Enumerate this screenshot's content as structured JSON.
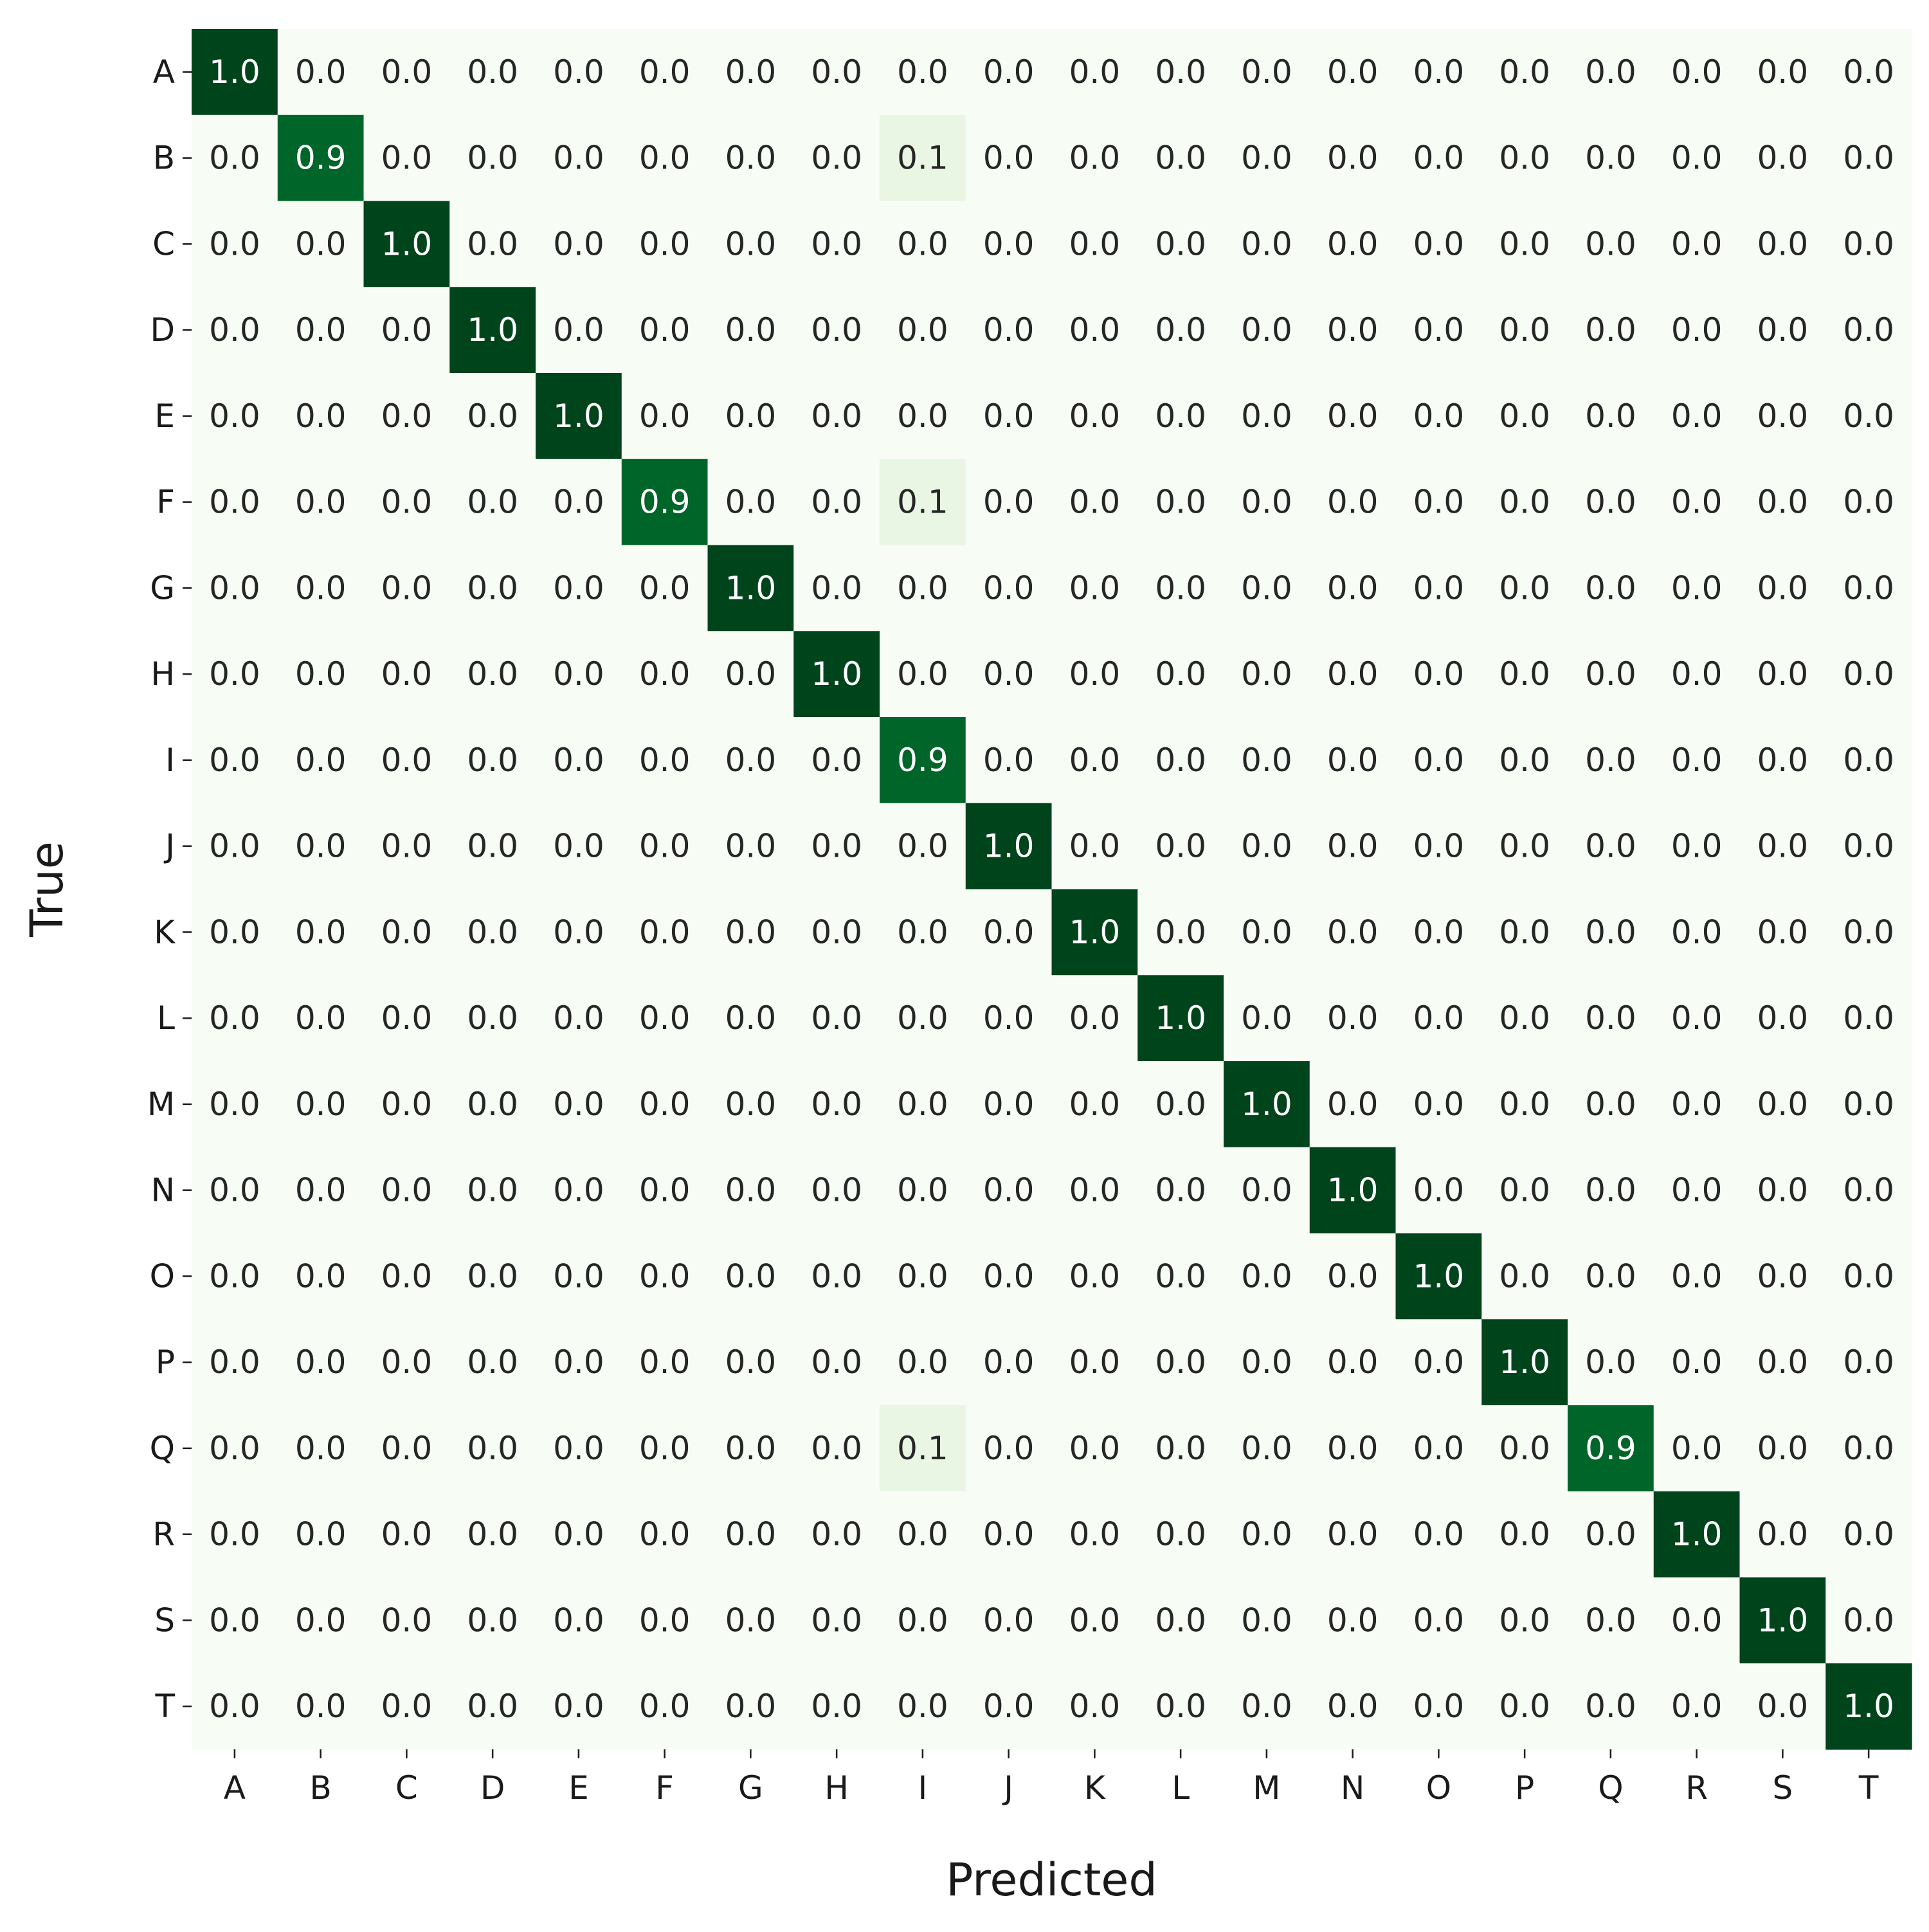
{
  "chart_data": {
    "type": "heatmap",
    "title": "",
    "xlabel": "Predicted",
    "ylabel": "True",
    "x_categories": [
      "A",
      "B",
      "C",
      "D",
      "E",
      "F",
      "G",
      "H",
      "I",
      "J",
      "K",
      "L",
      "M",
      "N",
      "O",
      "P",
      "Q",
      "R",
      "S",
      "T"
    ],
    "y_categories": [
      "A",
      "B",
      "C",
      "D",
      "E",
      "F",
      "G",
      "H",
      "I",
      "J",
      "K",
      "L",
      "M",
      "N",
      "O",
      "P",
      "Q",
      "R",
      "S",
      "T"
    ],
    "value_range": [
      0,
      1
    ],
    "colormap": "Greens",
    "colors": {
      "low": "#f7fcf5",
      "high": "#00441b",
      "text_dark": "#262626",
      "text_light": "#ffffff"
    },
    "values": [
      [
        1.0,
        0.0,
        0.0,
        0.0,
        0.0,
        0.0,
        0.0,
        0.0,
        0.0,
        0.0,
        0.0,
        0.0,
        0.0,
        0.0,
        0.0,
        0.0,
        0.0,
        0.0,
        0.0,
        0.0
      ],
      [
        0.0,
        0.9,
        0.0,
        0.0,
        0.0,
        0.0,
        0.0,
        0.0,
        0.1,
        0.0,
        0.0,
        0.0,
        0.0,
        0.0,
        0.0,
        0.0,
        0.0,
        0.0,
        0.0,
        0.0
      ],
      [
        0.0,
        0.0,
        1.0,
        0.0,
        0.0,
        0.0,
        0.0,
        0.0,
        0.0,
        0.0,
        0.0,
        0.0,
        0.0,
        0.0,
        0.0,
        0.0,
        0.0,
        0.0,
        0.0,
        0.0
      ],
      [
        0.0,
        0.0,
        0.0,
        1.0,
        0.0,
        0.0,
        0.0,
        0.0,
        0.0,
        0.0,
        0.0,
        0.0,
        0.0,
        0.0,
        0.0,
        0.0,
        0.0,
        0.0,
        0.0,
        0.0
      ],
      [
        0.0,
        0.0,
        0.0,
        0.0,
        1.0,
        0.0,
        0.0,
        0.0,
        0.0,
        0.0,
        0.0,
        0.0,
        0.0,
        0.0,
        0.0,
        0.0,
        0.0,
        0.0,
        0.0,
        0.0
      ],
      [
        0.0,
        0.0,
        0.0,
        0.0,
        0.0,
        0.9,
        0.0,
        0.0,
        0.1,
        0.0,
        0.0,
        0.0,
        0.0,
        0.0,
        0.0,
        0.0,
        0.0,
        0.0,
        0.0,
        0.0
      ],
      [
        0.0,
        0.0,
        0.0,
        0.0,
        0.0,
        0.0,
        1.0,
        0.0,
        0.0,
        0.0,
        0.0,
        0.0,
        0.0,
        0.0,
        0.0,
        0.0,
        0.0,
        0.0,
        0.0,
        0.0
      ],
      [
        0.0,
        0.0,
        0.0,
        0.0,
        0.0,
        0.0,
        0.0,
        1.0,
        0.0,
        0.0,
        0.0,
        0.0,
        0.0,
        0.0,
        0.0,
        0.0,
        0.0,
        0.0,
        0.0,
        0.0
      ],
      [
        0.0,
        0.0,
        0.0,
        0.0,
        0.0,
        0.0,
        0.0,
        0.0,
        0.9,
        0.0,
        0.0,
        0.0,
        0.0,
        0.0,
        0.0,
        0.0,
        0.0,
        0.0,
        0.0,
        0.0
      ],
      [
        0.0,
        0.0,
        0.0,
        0.0,
        0.0,
        0.0,
        0.0,
        0.0,
        0.0,
        1.0,
        0.0,
        0.0,
        0.0,
        0.0,
        0.0,
        0.0,
        0.0,
        0.0,
        0.0,
        0.0
      ],
      [
        0.0,
        0.0,
        0.0,
        0.0,
        0.0,
        0.0,
        0.0,
        0.0,
        0.0,
        0.0,
        1.0,
        0.0,
        0.0,
        0.0,
        0.0,
        0.0,
        0.0,
        0.0,
        0.0,
        0.0
      ],
      [
        0.0,
        0.0,
        0.0,
        0.0,
        0.0,
        0.0,
        0.0,
        0.0,
        0.0,
        0.0,
        0.0,
        1.0,
        0.0,
        0.0,
        0.0,
        0.0,
        0.0,
        0.0,
        0.0,
        0.0
      ],
      [
        0.0,
        0.0,
        0.0,
        0.0,
        0.0,
        0.0,
        0.0,
        0.0,
        0.0,
        0.0,
        0.0,
        0.0,
        1.0,
        0.0,
        0.0,
        0.0,
        0.0,
        0.0,
        0.0,
        0.0
      ],
      [
        0.0,
        0.0,
        0.0,
        0.0,
        0.0,
        0.0,
        0.0,
        0.0,
        0.0,
        0.0,
        0.0,
        0.0,
        0.0,
        1.0,
        0.0,
        0.0,
        0.0,
        0.0,
        0.0,
        0.0
      ],
      [
        0.0,
        0.0,
        0.0,
        0.0,
        0.0,
        0.0,
        0.0,
        0.0,
        0.0,
        0.0,
        0.0,
        0.0,
        0.0,
        0.0,
        1.0,
        0.0,
        0.0,
        0.0,
        0.0,
        0.0
      ],
      [
        0.0,
        0.0,
        0.0,
        0.0,
        0.0,
        0.0,
        0.0,
        0.0,
        0.0,
        0.0,
        0.0,
        0.0,
        0.0,
        0.0,
        0.0,
        1.0,
        0.0,
        0.0,
        0.0,
        0.0
      ],
      [
        0.0,
        0.0,
        0.0,
        0.0,
        0.0,
        0.0,
        0.0,
        0.0,
        0.1,
        0.0,
        0.0,
        0.0,
        0.0,
        0.0,
        0.0,
        0.0,
        0.9,
        0.0,
        0.0,
        0.0
      ],
      [
        0.0,
        0.0,
        0.0,
        0.0,
        0.0,
        0.0,
        0.0,
        0.0,
        0.0,
        0.0,
        0.0,
        0.0,
        0.0,
        0.0,
        0.0,
        0.0,
        0.0,
        1.0,
        0.0,
        0.0
      ],
      [
        0.0,
        0.0,
        0.0,
        0.0,
        0.0,
        0.0,
        0.0,
        0.0,
        0.0,
        0.0,
        0.0,
        0.0,
        0.0,
        0.0,
        0.0,
        0.0,
        0.0,
        0.0,
        1.0,
        0.0
      ],
      [
        0.0,
        0.0,
        0.0,
        0.0,
        0.0,
        0.0,
        0.0,
        0.0,
        0.0,
        0.0,
        0.0,
        0.0,
        0.0,
        0.0,
        0.0,
        0.0,
        0.0,
        0.0,
        0.0,
        1.0
      ]
    ],
    "grid": false,
    "colorbar": false
  }
}
